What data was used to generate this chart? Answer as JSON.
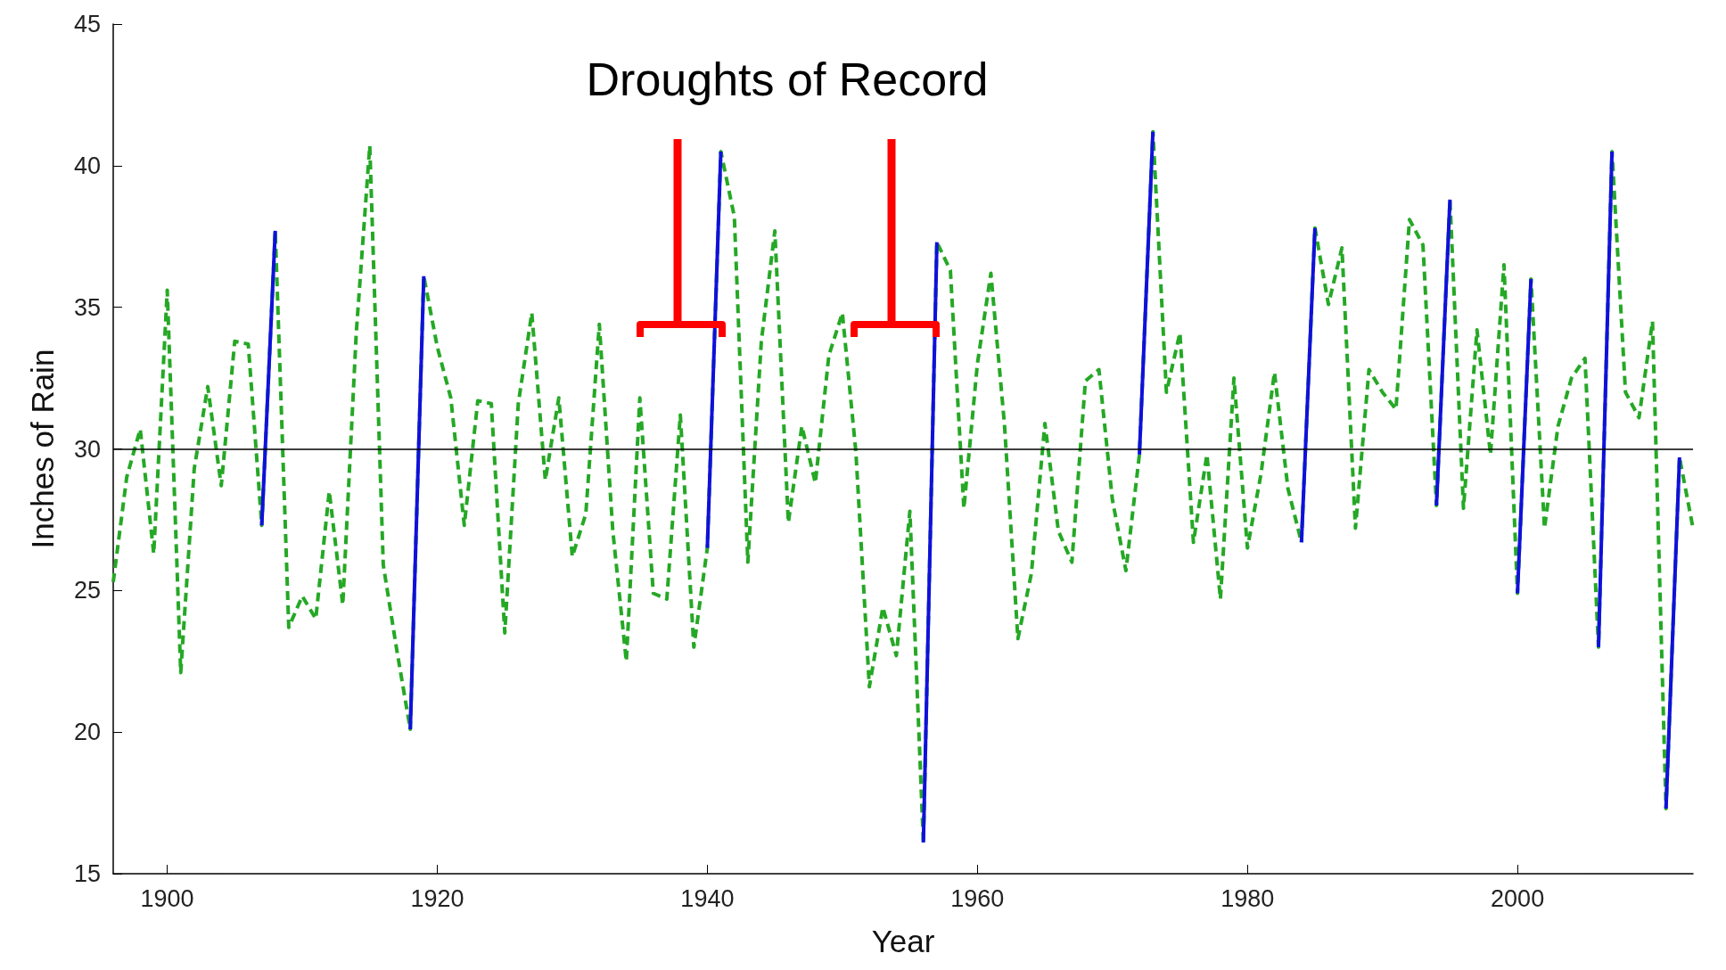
{
  "chart_data": {
    "type": "line",
    "title": "Droughts of Record",
    "xlabel": "Year",
    "ylabel": "Inches of Rain",
    "x": [
      1896,
      1897,
      1898,
      1899,
      1900,
      1901,
      1902,
      1903,
      1904,
      1905,
      1906,
      1907,
      1908,
      1909,
      1910,
      1911,
      1912,
      1913,
      1914,
      1915,
      1916,
      1917,
      1918,
      1919,
      1920,
      1921,
      1922,
      1923,
      1924,
      1925,
      1926,
      1927,
      1928,
      1929,
      1930,
      1931,
      1932,
      1933,
      1934,
      1935,
      1936,
      1937,
      1938,
      1939,
      1940,
      1941,
      1942,
      1943,
      1944,
      1945,
      1946,
      1947,
      1948,
      1949,
      1950,
      1951,
      1952,
      1953,
      1954,
      1955,
      1956,
      1957,
      1958,
      1959,
      1960,
      1961,
      1962,
      1963,
      1964,
      1965,
      1966,
      1967,
      1968,
      1969,
      1970,
      1971,
      1972,
      1973,
      1974,
      1975,
      1976,
      1977,
      1978,
      1979,
      1980,
      1981,
      1982,
      1983,
      1984,
      1985,
      1986,
      1987,
      1988,
      1989,
      1990,
      1991,
      1992,
      1993,
      1994,
      1995,
      1996,
      1997,
      1998,
      1999,
      2000,
      2001,
      2002,
      2003,
      2004,
      2005,
      2006,
      2007,
      2008,
      2009,
      2010,
      2011,
      2012,
      2013
    ],
    "series": [
      {
        "color": "#25a825",
        "line_style": "dashed",
        "values": [
          25.3,
          29.0,
          30.7,
          26.3,
          35.6,
          22.1,
          29.3,
          32.2,
          28.7,
          33.8,
          33.7,
          27.3,
          37.7,
          23.7,
          24.8,
          24.0,
          28.5,
          24.5,
          34.1,
          40.7,
          25.9,
          22.9,
          20.1,
          36.1,
          33.6,
          31.8,
          27.3,
          31.7,
          31.6,
          23.5,
          31.6,
          34.8,
          28.9,
          31.8,
          26.2,
          27.7,
          34.4,
          27.1,
          22.5,
          31.8,
          24.9,
          24.7,
          31.2,
          23.0,
          26.5,
          40.5,
          38.2,
          26.0,
          33.8,
          37.7,
          27.4,
          30.8,
          28.8,
          33.3,
          34.8,
          29.9,
          21.6,
          24.4,
          22.7,
          27.8,
          16.1,
          37.3,
          36.3,
          27.9,
          33.0,
          36.2,
          30.9,
          23.3,
          25.6,
          30.9,
          27.1,
          26.0,
          32.4,
          32.8,
          28.2,
          25.7,
          29.8,
          41.2,
          32.0,
          34.1,
          26.7,
          29.8,
          24.7,
          32.5,
          26.5,
          29.1,
          32.7,
          28.6,
          26.7,
          37.8,
          35.1,
          37.1,
          27.2,
          32.8,
          32.0,
          31.4,
          38.1,
          37.2,
          28.0,
          38.8,
          27.9,
          34.2,
          29.8,
          36.5,
          24.9,
          36.0,
          27.2,
          30.8,
          32.5,
          33.2,
          23.0,
          40.5,
          32.0,
          31.1,
          34.5,
          17.3,
          29.7,
          27.2
        ]
      },
      {
        "color": "#1010dd",
        "line_style": "solid",
        "x": [
          1907,
          1908,
          1913,
          1918,
          1919,
          1930,
          1940,
          1941,
          1948,
          1956,
          1957,
          1964,
          1972,
          1973,
          1978,
          1984,
          1985,
          1990,
          1994,
          1995,
          1997,
          2000,
          2001,
          2003,
          2006,
          2007,
          2009,
          2011,
          2012
        ],
        "values": [
          27.3,
          37.7,
          null,
          20.1,
          36.1,
          null,
          26.5,
          40.5,
          null,
          16.1,
          37.3,
          null,
          29.8,
          41.2,
          null,
          26.7,
          37.8,
          null,
          28.0,
          38.8,
          null,
          24.9,
          36.0,
          null,
          23.0,
          40.5,
          null,
          17.3,
          29.7
        ]
      }
    ],
    "xlim": [
      1896,
      2013
    ],
    "xticks": [
      1900,
      1920,
      1940,
      1960,
      1980,
      2000
    ],
    "ylim": [
      15,
      45
    ],
    "yticks": [
      15,
      20,
      25,
      30,
      35,
      40,
      45
    ],
    "grid": false,
    "marker": "none",
    "ref_lines": [
      {
        "axis": "y",
        "value": 30,
        "color": "#000000"
      }
    ]
  }
}
